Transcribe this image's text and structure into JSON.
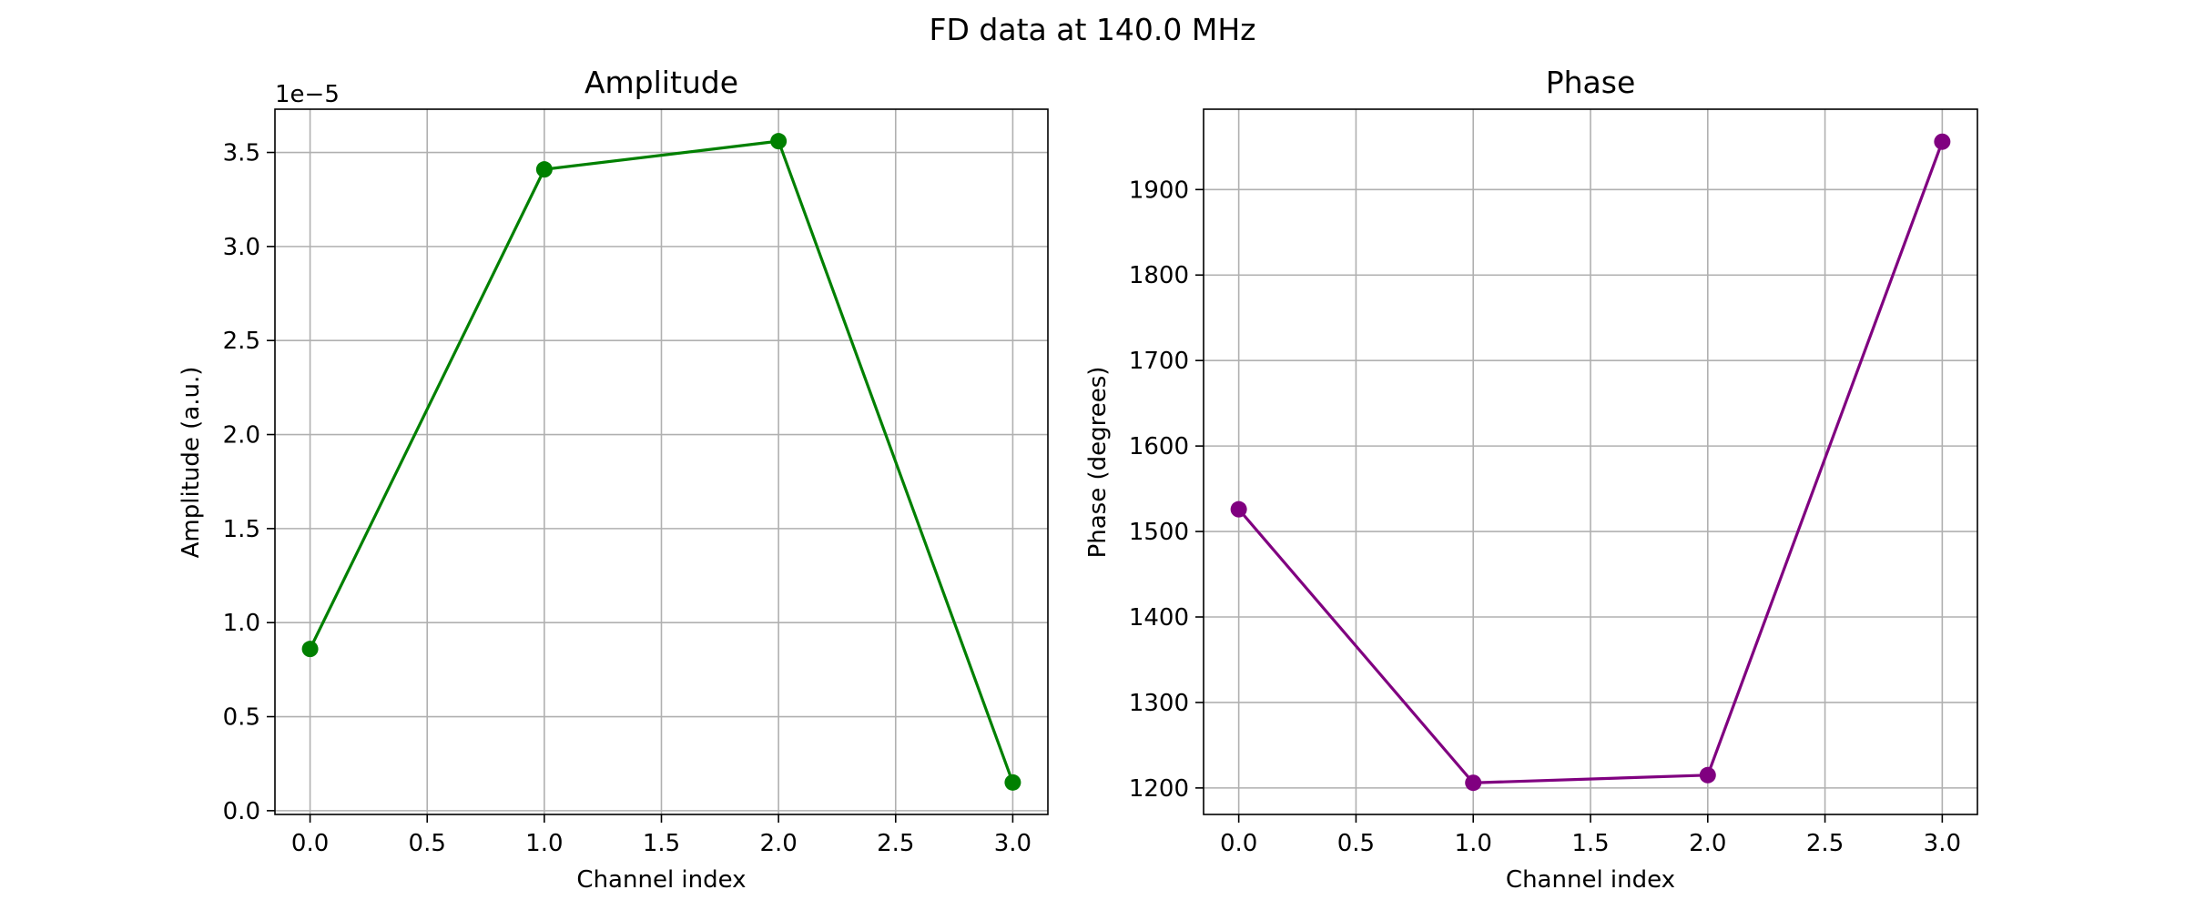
{
  "suptitle": "FD data at 140.0 MHz",
  "chart_data": [
    {
      "type": "line",
      "title": "Amplitude",
      "xlabel": "Channel index",
      "ylabel": "Amplitude (a.u.)",
      "offset_text": "1e−5",
      "x": [
        0.0,
        1.0,
        2.0,
        3.0
      ],
      "series": [
        {
          "values": [
            0.86,
            3.41,
            3.56,
            0.15
          ],
          "color": "#008000",
          "marker": "circle"
        }
      ],
      "xlim": [
        -0.15,
        3.15
      ],
      "ylim": [
        -0.02,
        3.73
      ],
      "xticks": [
        0.0,
        0.5,
        1.0,
        1.5,
        2.0,
        2.5,
        3.0
      ],
      "xtick_labels": [
        "0.0",
        "0.5",
        "1.0",
        "1.5",
        "2.0",
        "2.5",
        "3.0"
      ],
      "yticks": [
        0.0,
        0.5,
        1.0,
        1.5,
        2.0,
        2.5,
        3.0,
        3.5
      ],
      "ytick_labels": [
        "0.0",
        "0.5",
        "1.0",
        "1.5",
        "2.0",
        "2.5",
        "3.0",
        "3.5"
      ],
      "grid": true
    },
    {
      "type": "line",
      "title": "Phase",
      "xlabel": "Channel index",
      "ylabel": "Phase (degrees)",
      "x": [
        0.0,
        1.0,
        2.0,
        3.0
      ],
      "series": [
        {
          "values": [
            1526,
            1206,
            1215,
            1956
          ],
          "color": "#800080",
          "marker": "circle"
        }
      ],
      "xlim": [
        -0.15,
        3.15
      ],
      "ylim": [
        1169,
        1994
      ],
      "xticks": [
        0.0,
        0.5,
        1.0,
        1.5,
        2.0,
        2.5,
        3.0
      ],
      "xtick_labels": [
        "0.0",
        "0.5",
        "1.0",
        "1.5",
        "2.0",
        "2.5",
        "3.0"
      ],
      "yticks": [
        1200,
        1300,
        1400,
        1500,
        1600,
        1700,
        1800,
        1900
      ],
      "ytick_labels": [
        "1200",
        "1300",
        "1400",
        "1500",
        "1600",
        "1700",
        "1800",
        "1900"
      ],
      "grid": true
    }
  ]
}
